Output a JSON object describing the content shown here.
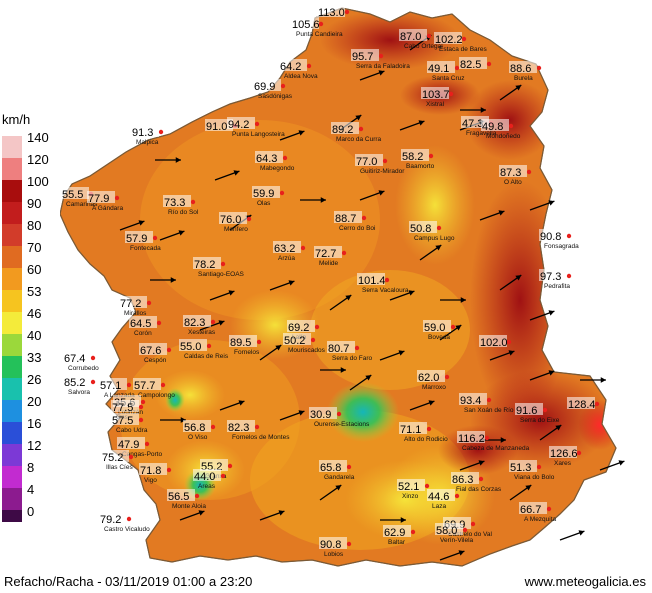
{
  "legend": {
    "unit": "km/h",
    "levels": [
      {
        "label": "140",
        "color": "#f4c6c6"
      },
      {
        "label": "120",
        "color": "#ee7f7f"
      },
      {
        "label": "100",
        "color": "#a80d0d"
      },
      {
        "label": "90",
        "color": "#c21d1d"
      },
      {
        "label": "80",
        "color": "#d23c2a"
      },
      {
        "label": "70",
        "color": "#e06b21"
      },
      {
        "label": "60",
        "color": "#f29a1f"
      },
      {
        "label": "53",
        "color": "#f6c41f"
      },
      {
        "label": "46",
        "color": "#f4eb3a"
      },
      {
        "label": "40",
        "color": "#9bd83b"
      },
      {
        "label": "33",
        "color": "#24c15a"
      },
      {
        "label": "26",
        "color": "#19c1ad"
      },
      {
        "label": "20",
        "color": "#1e90e0"
      },
      {
        "label": "16",
        "color": "#2a4fd8"
      },
      {
        "label": "12",
        "color": "#7c39d6"
      },
      {
        "label": "8",
        "color": "#c22bd0"
      },
      {
        "label": "4",
        "color": "#8c1b8f"
      },
      {
        "label": "0",
        "color": "#3e0a46"
      }
    ]
  },
  "stations": [
    {
      "value": "105.6",
      "name": "Punta Candieira"
    },
    {
      "value": "113.0",
      "name": ""
    },
    {
      "value": "87.0",
      "name": "Cabo Ortegal"
    },
    {
      "value": "102.2",
      "name": "Estaca de Bares"
    },
    {
      "value": "95.7",
      "name": "Serra da Faladoira"
    },
    {
      "value": "64.2",
      "name": "Aldea Nova"
    },
    {
      "value": "49.1",
      "name": "Santa Cruz"
    },
    {
      "value": "82.5",
      "name": ""
    },
    {
      "value": "88.6",
      "name": "Burela"
    },
    {
      "value": "69.9",
      "name": "Sasdónigas"
    },
    {
      "value": "103.7",
      "name": "Xistral"
    },
    {
      "value": "91.3",
      "name": "Malpica"
    },
    {
      "value": "91.0",
      "name": ""
    },
    {
      "value": "94.2",
      "name": "Punta Langosteira"
    },
    {
      "value": "89.2",
      "name": "Marco da Curra"
    },
    {
      "value": "47.3",
      "name": "Fragavella"
    },
    {
      "value": "49.8",
      "name": "Mondoñedo"
    },
    {
      "value": "64.3",
      "name": "Mabegondo"
    },
    {
      "value": "77.0",
      "name": "Guitiriz-Mirador"
    },
    {
      "value": "58.2",
      "name": "Baamorto"
    },
    {
      "value": "87.3",
      "name": "O Alto"
    },
    {
      "value": "55.5",
      "name": "Camariñas"
    },
    {
      "value": "77.9",
      "name": "A Gándara"
    },
    {
      "value": "73.3",
      "name": "Río do Sol"
    },
    {
      "value": "59.9",
      "name": "Olas"
    },
    {
      "value": "76.0",
      "name": "Monfero"
    },
    {
      "value": "88.7",
      "name": "Cerro do Boi"
    },
    {
      "value": "50.8",
      "name": "Campus Lugo"
    },
    {
      "value": "90.8",
      "name": "Fonsagrada"
    },
    {
      "value": "57.9",
      "name": "Fontecada"
    },
    {
      "value": "63.2",
      "name": "Arzúa"
    },
    {
      "value": "72.7",
      "name": "Melide"
    },
    {
      "value": "78.2",
      "name": "Santiago-EOAS"
    },
    {
      "value": "97.3",
      "name": "Pedrafita"
    },
    {
      "value": "101.4",
      "name": "Serra Vacaloura"
    },
    {
      "value": "77.2",
      "name": "Mirallos"
    },
    {
      "value": "82.3",
      "name": "Xesteiras"
    },
    {
      "value": "64.5",
      "name": "Corón"
    },
    {
      "value": "69.2",
      "name": "Lalín"
    },
    {
      "value": "59.0",
      "name": "Boveda"
    },
    {
      "value": "102.0",
      "name": ""
    },
    {
      "value": "67.4",
      "name": "Corrubedo"
    },
    {
      "value": "67.6",
      "name": "Cespón"
    },
    {
      "value": "55.0",
      "name": "Caldas de Reis"
    },
    {
      "value": "89.5",
      "name": "Fornelos"
    },
    {
      "value": "50.2",
      "name": "Mouriscados"
    },
    {
      "value": "80.7",
      "name": "Serra do Faro"
    },
    {
      "value": "62.0",
      "name": "Marroxo"
    },
    {
      "value": "85.2",
      "name": "Salvora"
    },
    {
      "value": "57.1",
      "name": "A Lanzada"
    },
    {
      "value": "57.7",
      "name": "Campolongo"
    },
    {
      "value": "35.6",
      "name": "Lourizán"
    },
    {
      "value": "93.4",
      "name": "San Xoán de Río"
    },
    {
      "value": "77.5",
      "name": "Ons"
    },
    {
      "value": "57.5",
      "name": "Cabo Udra"
    },
    {
      "value": "56.8",
      "name": "O Viso"
    },
    {
      "value": "82.3",
      "name": "Fornelos de Montes"
    },
    {
      "value": "30.9",
      "name": "Ourense-Estacions"
    },
    {
      "value": "71.1",
      "name": "Alto do Rodicio"
    },
    {
      "value": "91.6",
      "name": "Serra do Eixe"
    },
    {
      "value": "128.4",
      "name": ""
    },
    {
      "value": "116.2",
      "name": "Cabeza de Manzaneda"
    },
    {
      "value": "47.9",
      "name": "Cangas-Porto"
    },
    {
      "value": "75.2",
      "name": "Illas Cíes"
    },
    {
      "value": "126.6",
      "name": "Xares"
    },
    {
      "value": "71.8",
      "name": "Vigo"
    },
    {
      "value": "55.2",
      "name": "Granxa"
    },
    {
      "value": "44.0",
      "name": "Areas"
    },
    {
      "value": "65.8",
      "name": "Gandarela"
    },
    {
      "value": "52.1",
      "name": "Xinzo"
    },
    {
      "value": "86.3",
      "name": "Fial das Corzas"
    },
    {
      "value": "51.3",
      "name": "Viana do Bolo"
    },
    {
      "value": "56.5",
      "name": "Monte Aloia"
    },
    {
      "value": "44.6",
      "name": "Laza"
    },
    {
      "value": "66.7",
      "name": "A Mezquita"
    },
    {
      "value": "79.2",
      "name": "Castro Vicaludo"
    },
    {
      "value": "69.9",
      "name": "Castrelo do Val"
    },
    {
      "value": "58.0",
      "name": "Verín-Vilela"
    },
    {
      "value": "90.8",
      "name": "Lobios"
    },
    {
      "value": "62.9",
      "name": "Baltar"
    }
  ],
  "footer": {
    "left": "Refacho/Racha - 03/11/2019 01:00 a 23:20",
    "right": "www.meteogalicia.es"
  }
}
